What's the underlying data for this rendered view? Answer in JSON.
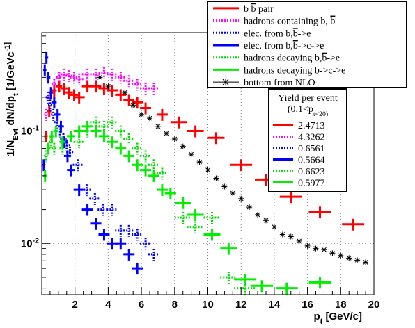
{
  "chart_data": {
    "type": "scatter",
    "xlabel": "p_t [GeV/c]",
    "ylabel": "1/N_Evt dN/dp_t [1/GeVc^-1]",
    "xlim": [
      0,
      20
    ],
    "ylim": [
      0.0035,
      0.75
    ],
    "yscale": "log",
    "x_ticks": [
      "2",
      "4",
      "6",
      "8",
      "10",
      "12",
      "14",
      "16",
      "18",
      "20"
    ],
    "y_ticks": [
      {
        "value": 0.1,
        "label": "10^-1"
      },
      {
        "value": 0.01,
        "label": "10^-2"
      }
    ],
    "grid": true,
    "legend_position": "top-right",
    "yield_box": {
      "title_line1": "Yield per event",
      "title_line2": "(0.1<p_t<20)"
    },
    "series": [
      {
        "name": "b b̅ pair",
        "color": "#ff0000",
        "style": "solid",
        "yield": "2.4713",
        "points": [
          [
            0.25,
            0.09
          ],
          [
            0.45,
            0.15
          ],
          [
            0.75,
            0.23
          ],
          [
            1.05,
            0.25
          ],
          [
            1.35,
            0.24
          ],
          [
            1.65,
            0.22
          ],
          [
            1.95,
            0.21
          ],
          [
            2.25,
            0.2
          ],
          [
            2.75,
            0.25
          ],
          [
            3.25,
            0.25
          ],
          [
            3.75,
            0.24
          ],
          [
            4.25,
            0.23
          ],
          [
            4.75,
            0.21
          ],
          [
            5.25,
            0.19
          ],
          [
            5.75,
            0.18
          ],
          [
            6.25,
            0.16
          ],
          [
            7.25,
            0.14
          ],
          [
            8.25,
            0.12
          ],
          [
            9.25,
            0.1
          ],
          [
            10.5,
            0.087
          ],
          [
            12,
            0.05
          ],
          [
            13.5,
            0.037
          ],
          [
            15,
            0.026
          ],
          [
            16.75,
            0.019
          ],
          [
            18.75,
            0.0148
          ]
        ]
      },
      {
        "name": "hadrons containing b, b̅",
        "color": "#ff00ff",
        "style": "dotted",
        "yield": "4.3262",
        "points": [
          [
            0.25,
            0.14
          ],
          [
            0.45,
            0.2
          ],
          [
            0.75,
            0.26
          ],
          [
            1.05,
            0.3
          ],
          [
            1.35,
            0.32
          ],
          [
            1.65,
            0.31
          ],
          [
            1.95,
            0.3
          ],
          [
            2.25,
            0.29
          ],
          [
            2.75,
            0.32
          ],
          [
            3.25,
            0.32
          ],
          [
            3.75,
            0.33
          ],
          [
            4.25,
            0.32
          ],
          [
            4.75,
            0.3
          ],
          [
            5.25,
            0.28
          ],
          [
            5.75,
            0.26
          ],
          [
            6.25,
            0.24
          ],
          [
            6.75,
            0.24
          ]
        ]
      },
      {
        "name": "elec. from b,b̅->e",
        "color": "#0000ff",
        "style": "dotted",
        "yield": "0.6561",
        "points": [
          [
            0.35,
            0.2
          ],
          [
            0.5,
            0.17
          ],
          [
            0.7,
            0.14
          ],
          [
            0.9,
            0.12
          ],
          [
            1.1,
            0.1
          ],
          [
            1.3,
            0.085
          ],
          [
            1.5,
            0.075
          ],
          [
            1.7,
            0.065
          ],
          [
            2.2,
            0.05
          ],
          [
            2.7,
            0.03
          ],
          [
            3.2,
            0.025
          ],
          [
            3.7,
            0.02
          ],
          [
            4.25,
            0.02
          ],
          [
            4.75,
            0.013
          ],
          [
            5.25,
            0.013
          ],
          [
            5.75,
            0.012
          ],
          [
            6.25,
            0.01
          ],
          [
            6.75,
            0.008
          ]
        ]
      },
      {
        "name": "elec. from b,b̅->c->e",
        "color": "#0000ff",
        "style": "solid",
        "yield": "0.5664",
        "points": [
          [
            0.12,
            0.05
          ],
          [
            0.18,
            0.35
          ],
          [
            0.28,
            0.45
          ],
          [
            0.4,
            0.3
          ],
          [
            0.55,
            0.22
          ],
          [
            0.75,
            0.18
          ],
          [
            0.95,
            0.14
          ],
          [
            1.15,
            0.11
          ],
          [
            1.35,
            0.08
          ],
          [
            1.55,
            0.06
          ],
          [
            1.75,
            0.045
          ],
          [
            2.25,
            0.03
          ],
          [
            2.75,
            0.02
          ],
          [
            3.25,
            0.015
          ],
          [
            3.75,
            0.012
          ],
          [
            4.25,
            0.01
          ],
          [
            4.75,
            0.01
          ],
          [
            5.25,
            0.008
          ],
          [
            5.75,
            0.006
          ]
        ]
      },
      {
        "name": "hadrons decaying b,b̅->e",
        "color": "#00dd00",
        "style": "dotted",
        "yield": "0.6623",
        "points": [
          [
            0.25,
            0.06
          ],
          [
            0.55,
            0.08
          ],
          [
            0.75,
            0.07
          ],
          [
            1.25,
            0.07
          ],
          [
            1.75,
            0.09
          ],
          [
            2.25,
            0.08
          ],
          [
            2.75,
            0.1
          ],
          [
            3.25,
            0.12
          ],
          [
            3.75,
            0.11
          ],
          [
            4.25,
            0.12
          ],
          [
            4.75,
            0.1
          ],
          [
            5.25,
            0.085
          ],
          [
            5.75,
            0.07
          ],
          [
            6.25,
            0.06
          ],
          [
            6.75,
            0.05
          ],
          [
            7.25,
            0.042
          ],
          [
            7.75,
            0.028
          ],
          [
            8.5,
            0.017
          ],
          [
            9.25,
            0.014
          ],
          [
            10.25,
            0.017
          ],
          [
            11.25,
            0.005
          ],
          [
            12.25,
            0.004
          ]
        ]
      },
      {
        "name": "hadrons decaying b->c->e",
        "color": "#00ee00",
        "style": "solid",
        "yield": "0.5977",
        "points": [
          [
            0.2,
            0.04
          ],
          [
            0.4,
            0.07
          ],
          [
            0.6,
            0.09
          ],
          [
            0.85,
            0.1
          ],
          [
            1.25,
            0.08
          ],
          [
            1.75,
            0.09
          ],
          [
            2.25,
            0.1
          ],
          [
            2.75,
            0.11
          ],
          [
            3.25,
            0.1
          ],
          [
            3.75,
            0.09
          ],
          [
            4.25,
            0.08
          ],
          [
            4.75,
            0.07
          ],
          [
            5.25,
            0.06
          ],
          [
            5.75,
            0.05
          ],
          [
            6.25,
            0.045
          ],
          [
            6.75,
            0.04
          ],
          [
            7.25,
            0.03
          ],
          [
            7.75,
            0.028
          ],
          [
            8.5,
            0.023
          ],
          [
            9.25,
            0.018
          ],
          [
            10.25,
            0.012
          ],
          [
            11.25,
            0.009
          ],
          [
            12.25,
            0.0048
          ],
          [
            13.25,
            0.0042
          ],
          [
            14.75,
            0.004
          ],
          [
            16.75,
            0.0045
          ]
        ]
      },
      {
        "name": "bottom from NLO",
        "color": "#000000",
        "style": "star",
        "yield": "",
        "points": [
          [
            3.5,
            0.3
          ],
          [
            4,
            0.25
          ],
          [
            5,
            0.22
          ],
          [
            5.5,
            0.17
          ],
          [
            6,
            0.14
          ],
          [
            6.5,
            0.13
          ],
          [
            7,
            0.11
          ],
          [
            7.5,
            0.095
          ],
          [
            8,
            0.085
          ],
          [
            8.5,
            0.073
          ],
          [
            9,
            0.062
          ],
          [
            9.5,
            0.053
          ],
          [
            10,
            0.045
          ],
          [
            10.5,
            0.038
          ],
          [
            11,
            0.032
          ],
          [
            11.5,
            0.028
          ],
          [
            12,
            0.025
          ],
          [
            12.5,
            0.021
          ],
          [
            13,
            0.018
          ],
          [
            13.5,
            0.016
          ],
          [
            14,
            0.014
          ],
          [
            14.5,
            0.012
          ],
          [
            15,
            0.0115
          ],
          [
            15.5,
            0.0105
          ],
          [
            16,
            0.0095
          ],
          [
            16.5,
            0.009
          ],
          [
            17,
            0.0088
          ],
          [
            17.5,
            0.0082
          ],
          [
            18,
            0.0078
          ],
          [
            18.5,
            0.0074
          ],
          [
            19,
            0.0071
          ],
          [
            19.5,
            0.0068
          ]
        ]
      }
    ]
  }
}
